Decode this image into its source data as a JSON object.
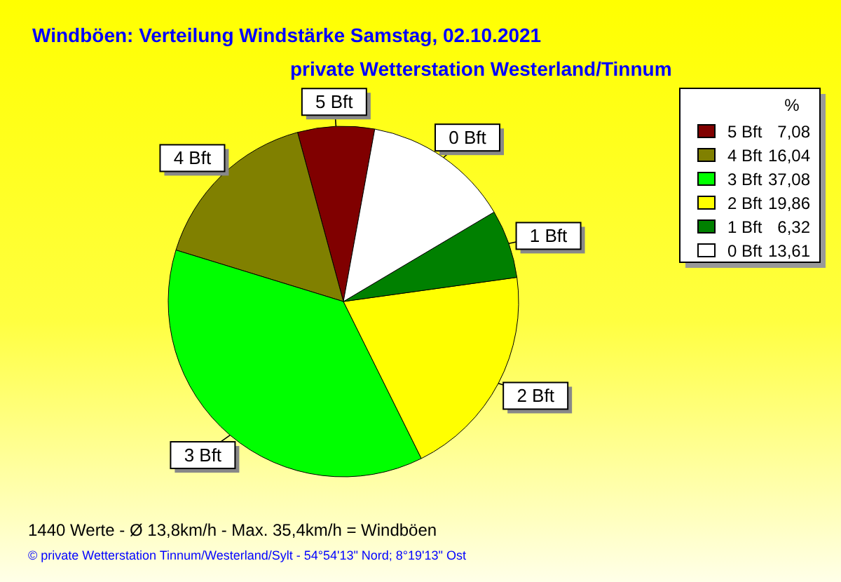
{
  "chart_data": {
    "type": "pie",
    "title": "Windböen: Verteilung Windstärke  Samstag, 02.10.2021",
    "subtitle": "private Wetterstation Westerland/Tinnum",
    "categories": [
      "5 Bft",
      "4 Bft",
      "3 Bft",
      "2 Bft",
      "1 Bft",
      "0 Bft"
    ],
    "values": [
      7.08,
      16.04,
      37.08,
      19.86,
      6.32,
      13.61
    ],
    "colors": [
      "#800000",
      "#808000",
      "#00ff00",
      "#ffff00",
      "#008000",
      "#ffffff"
    ],
    "value_labels": [
      "7,08",
      "16,04",
      "37,08",
      "19,86",
      "6,32",
      "13,61"
    ],
    "legend_title": "%",
    "legend": "top right",
    "annotations": [
      "1440 Werte   -   Ø 13,8km/h  -  Max. 35,4km/h = Windböen",
      "© private Wetterstation Tinnum/Westerland/Sylt   -   54°54'13\" Nord; 8°19'13\" Ost"
    ]
  }
}
